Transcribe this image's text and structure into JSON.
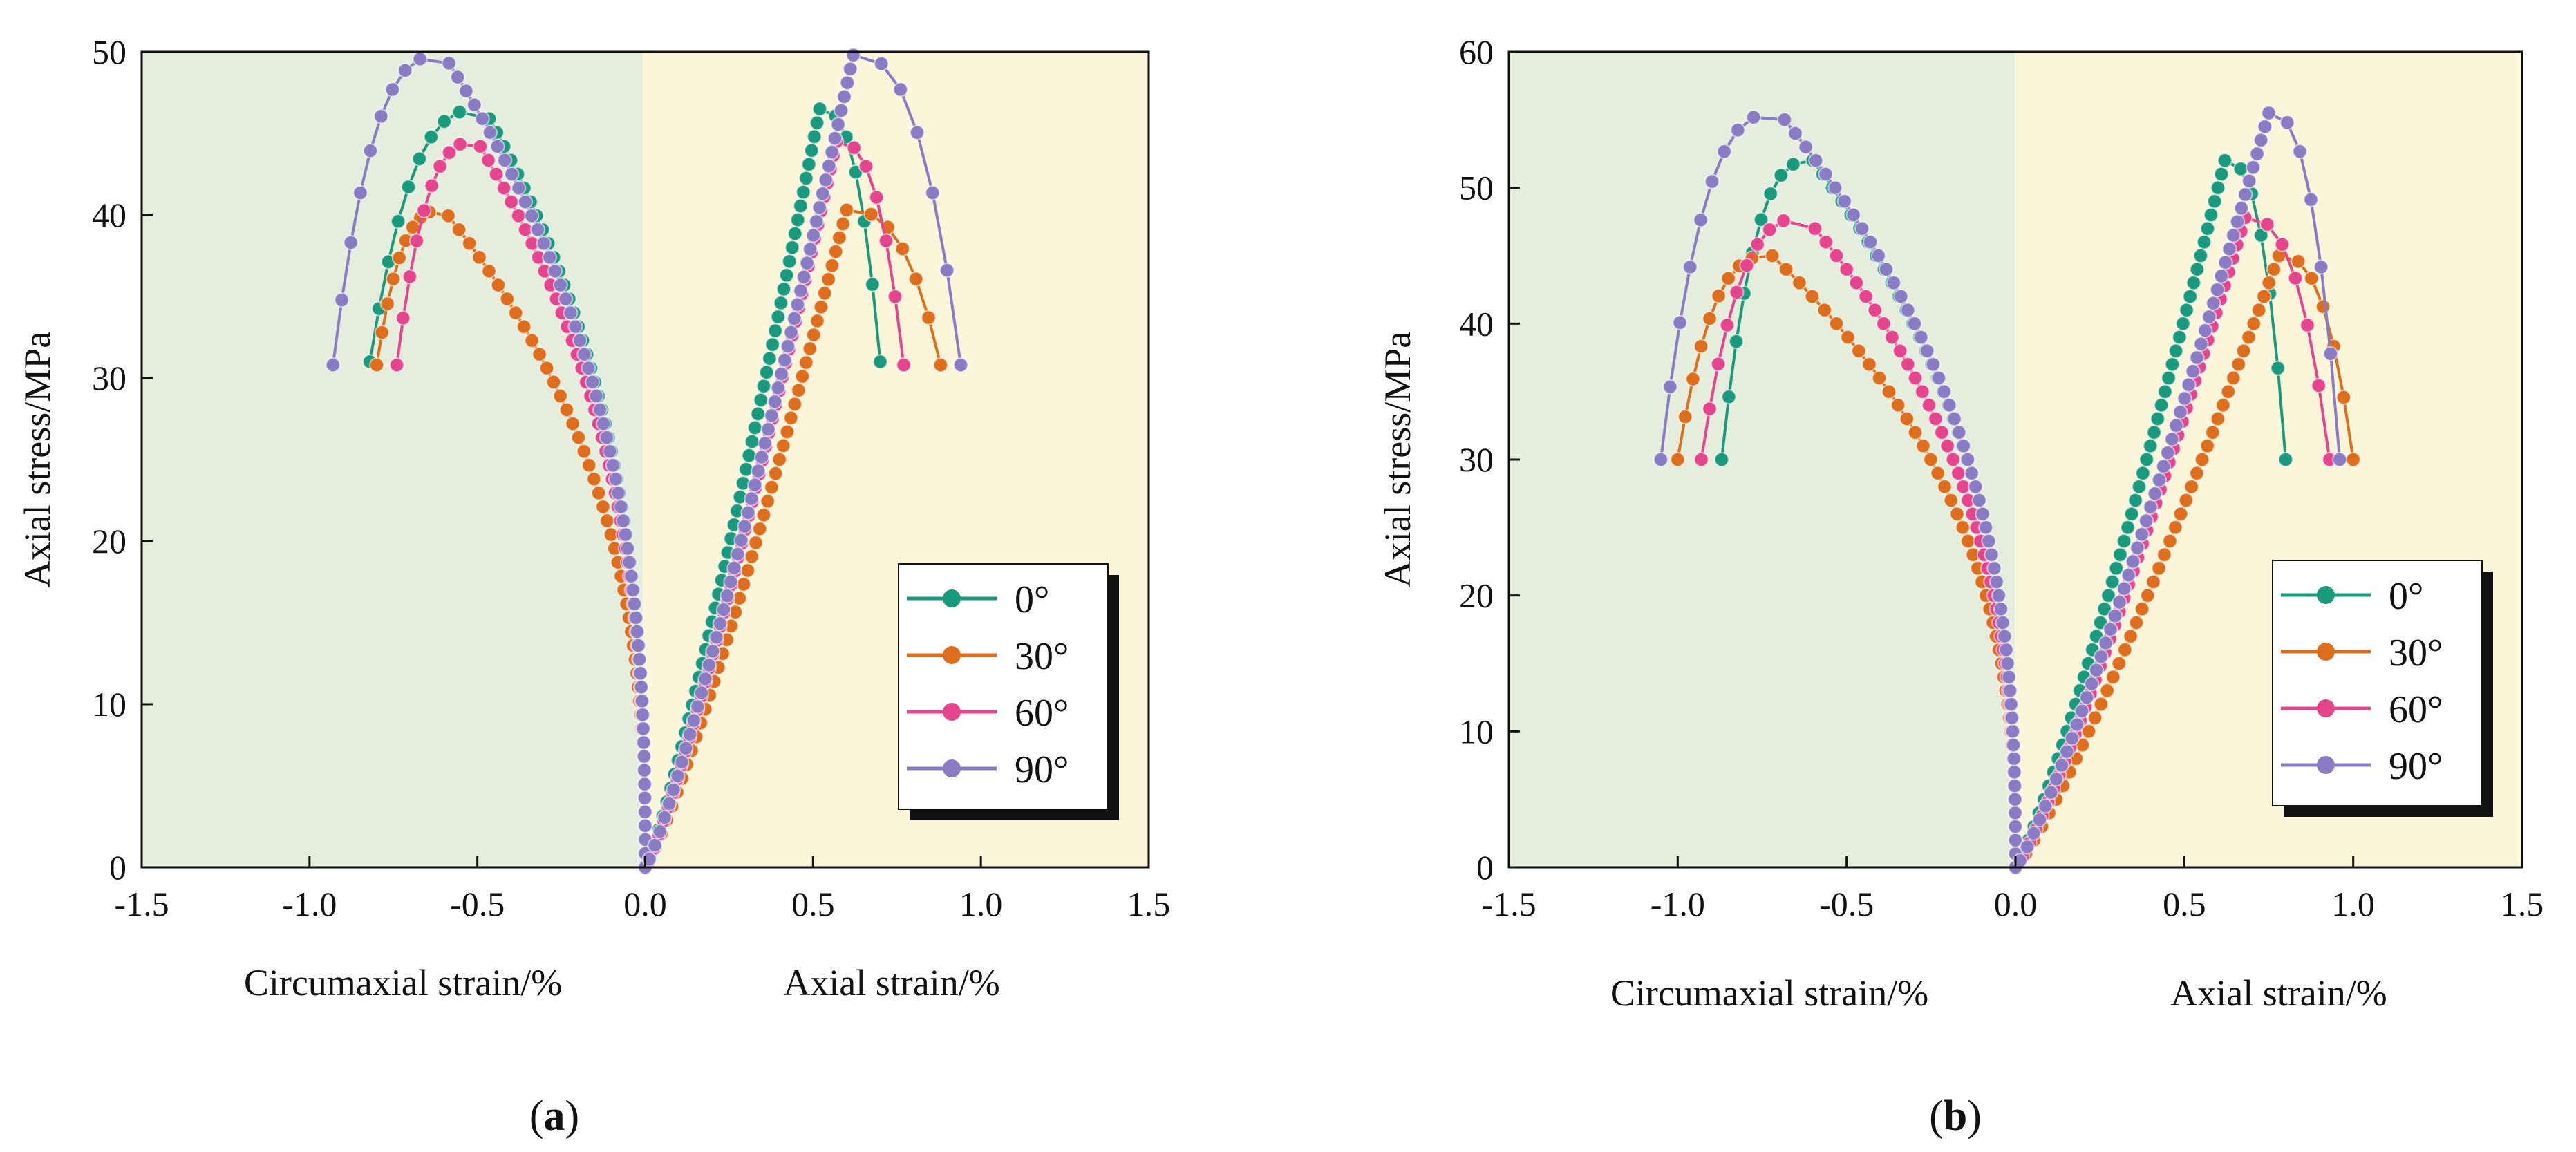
{
  "figure": {
    "colors": {
      "left_region": "#e5eedd",
      "right_region": "#fbf5da",
      "series": [
        "#1a9a7c",
        "#de6e1b",
        "#e6458e",
        "#8a7cc4"
      ]
    }
  },
  "chart_data": [
    {
      "type": "line",
      "panel": "a",
      "caption": "(a)",
      "caption_letter": "a",
      "ylabel": "Axial  stress/MPa",
      "xlabel_left": "Circumaxial  strain/%",
      "xlabel_right": "Axial strain/%",
      "xlim": [
        -1.5,
        1.5
      ],
      "ylim": [
        0,
        50
      ],
      "xticks": [
        -1.5,
        -1.0,
        -0.5,
        0.0,
        0.5,
        1.0,
        1.5
      ],
      "xtick_labels": [
        "-1.5",
        "-1.0",
        "-0.5",
        "0.0",
        "0.5",
        "1.0",
        "1.5"
      ],
      "yticks": [
        0,
        10,
        20,
        30,
        40,
        50
      ],
      "ytick_labels": [
        "0",
        "10",
        "20",
        "30",
        "40",
        "50"
      ],
      "legend_position": "bottom-right",
      "series": [
        {
          "name": "0°",
          "circ_end": -0.82,
          "circ_peak": -0.48,
          "axial_peak": 0.52,
          "axial_end": 0.7,
          "peak": 46.5,
          "end": 31
        },
        {
          "name": "30°",
          "circ_end": -0.8,
          "circ_peak": -0.6,
          "axial_peak": 0.6,
          "axial_end": 0.88,
          "peak": 40.3,
          "end": 30.8
        },
        {
          "name": "60°",
          "circ_end": -0.74,
          "circ_peak": -0.5,
          "axial_peak": 0.57,
          "axial_end": 0.77,
          "peak": 44.5,
          "end": 30.8
        },
        {
          "name": "90°",
          "circ_end": -0.93,
          "circ_peak": -0.6,
          "axial_peak": 0.62,
          "axial_end": 0.94,
          "peak": 49.8,
          "end": 30.8
        }
      ]
    },
    {
      "type": "line",
      "panel": "b",
      "caption": "(b)",
      "caption_letter": "b",
      "ylabel": "Axial  stress/MPa",
      "xlabel_left": "Circumaxial  strain/%",
      "xlabel_right": "Axial strain/%",
      "xlim": [
        -1.5,
        1.5
      ],
      "ylim": [
        0,
        60
      ],
      "xticks": [
        -1.5,
        -1.0,
        -0.5,
        0.0,
        0.5,
        1.0,
        1.5
      ],
      "xtick_labels": [
        "-1.5",
        "-1.0",
        "-0.5",
        "0.0",
        "0.5",
        "1.0",
        "1.5"
      ],
      "yticks": [
        0,
        10,
        20,
        30,
        40,
        50,
        60
      ],
      "ytick_labels": [
        "0",
        "10",
        "20",
        "30",
        "40",
        "50",
        "60"
      ],
      "legend_position": "bottom-right",
      "series": [
        {
          "name": "0°",
          "circ_end": -0.87,
          "circ_peak": -0.6,
          "axial_peak": 0.62,
          "axial_end": 0.8,
          "peak": 52,
          "end": 30
        },
        {
          "name": "30°",
          "circ_end": -1.0,
          "circ_peak": -0.72,
          "axial_peak": 0.78,
          "axial_end": 1.0,
          "peak": 45,
          "end": 30
        },
        {
          "name": "60°",
          "circ_end": -0.93,
          "circ_peak": -0.62,
          "axial_peak": 0.68,
          "axial_end": 0.93,
          "peak": 47.8,
          "end": 30
        },
        {
          "name": "90°",
          "circ_end": -1.05,
          "circ_peak": -0.7,
          "axial_peak": 0.75,
          "axial_end": 0.96,
          "peak": 55.5,
          "end": 30
        }
      ]
    }
  ]
}
